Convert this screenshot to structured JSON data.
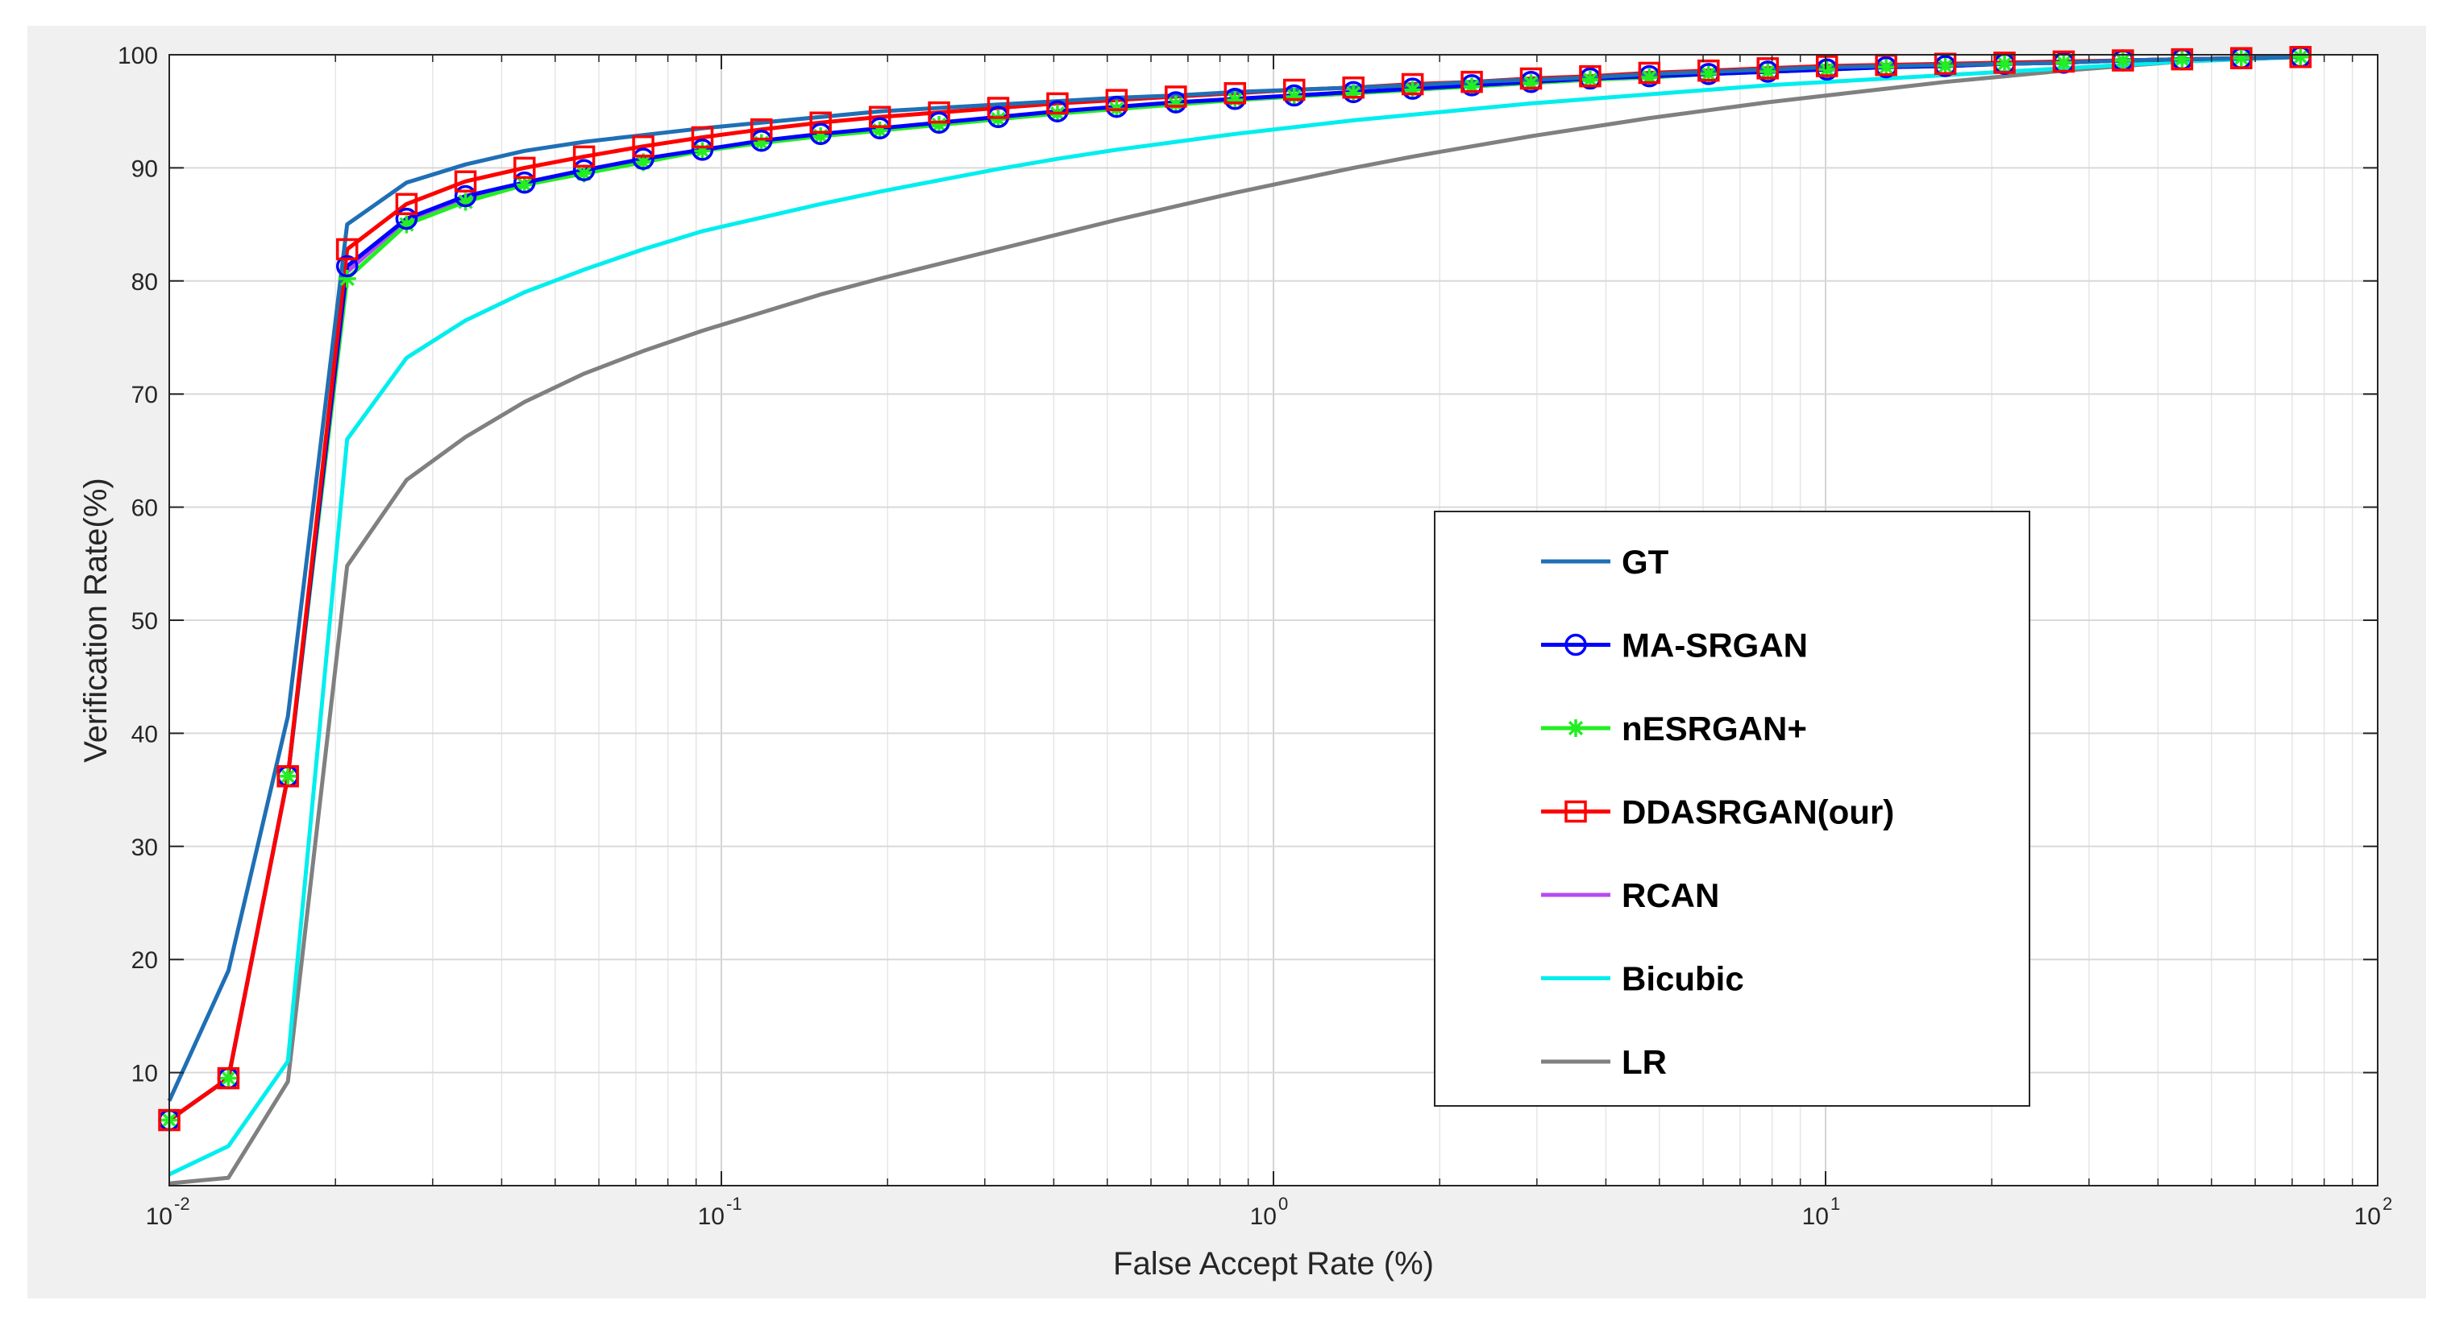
{
  "chart_data": {
    "type": "line",
    "title": "",
    "xlabel": "False Accept Rate (%)",
    "ylabel": "Verification Rate(%)",
    "xscale": "log",
    "xlim": [
      0.01,
      100
    ],
    "ylim": [
      0,
      100
    ],
    "grid": true,
    "legend_position": "bottom-right",
    "x_tick_labels": [
      {
        "base": "10",
        "exp": "-2",
        "value": 0.01
      },
      {
        "base": "10",
        "exp": "-1",
        "value": 0.1
      },
      {
        "base": "10",
        "exp": "0",
        "value": 1
      },
      {
        "base": "10",
        "exp": "1",
        "value": 10
      },
      {
        "base": "10",
        "exp": "2",
        "value": 100
      }
    ],
    "y_ticks": [
      10,
      20,
      30,
      40,
      50,
      60,
      70,
      80,
      90,
      100
    ],
    "x": [
      0.01,
      0.0128,
      0.0164,
      0.021,
      0.0269,
      0.0344,
      0.044,
      0.0564,
      0.0722,
      0.0924,
      0.1182,
      0.1513,
      0.1937,
      0.2479,
      0.3173,
      0.4062,
      0.5199,
      0.6655,
      0.8518,
      1.0904,
      1.3957,
      1.7865,
      2.2867,
      2.927,
      3.7465,
      4.7955,
      6.1383,
      7.8571,
      10.057,
      12.873,
      16.478,
      21.092,
      26.998,
      34.557,
      44.233,
      56.618,
      72.471
    ],
    "series": [
      {
        "name": "GT",
        "color": "#1f6fb5",
        "marker": "none",
        "values": [
          7.5,
          19,
          41.5,
          85,
          88.7,
          90.3,
          91.5,
          92.3,
          92.9,
          93.5,
          94.0,
          94.5,
          95.0,
          95.3,
          95.6,
          95.9,
          96.2,
          96.4,
          96.7,
          96.9,
          97.1,
          97.3,
          97.6,
          97.8,
          98.0,
          98.3,
          98.5,
          98.7,
          98.9,
          99.0,
          99.1,
          99.2,
          99.3,
          99.5,
          99.6,
          99.7,
          99.8
        ]
      },
      {
        "name": "MA-SRGAN",
        "color": "#0000ff",
        "marker": "circle",
        "values": [
          5.8,
          9.5,
          36.2,
          81.3,
          85.5,
          87.5,
          88.7,
          89.8,
          90.8,
          91.6,
          92.4,
          93.0,
          93.5,
          94.0,
          94.5,
          95.0,
          95.4,
          95.8,
          96.1,
          96.4,
          96.7,
          97.0,
          97.3,
          97.6,
          97.9,
          98.1,
          98.3,
          98.5,
          98.7,
          98.9,
          99.0,
          99.2,
          99.3,
          99.5,
          99.6,
          99.7,
          99.8
        ]
      },
      {
        "name": "nESRGAN+",
        "color": "#22ee22",
        "marker": "star",
        "values": [
          5.8,
          9.5,
          36.2,
          80.2,
          85.0,
          87.0,
          88.5,
          89.5,
          90.5,
          91.5,
          92.2,
          92.8,
          93.3,
          93.8,
          94.3,
          94.8,
          95.2,
          95.6,
          96.0,
          96.3,
          96.6,
          96.9,
          97.2,
          97.5,
          97.8,
          98.0,
          98.3,
          98.5,
          98.7,
          98.9,
          99.0,
          99.2,
          99.3,
          99.5,
          99.6,
          99.7,
          99.8
        ]
      },
      {
        "name": "DDASRGAN(our)",
        "color": "#ff0000",
        "marker": "square",
        "values": [
          5.8,
          9.5,
          36.2,
          82.8,
          86.8,
          88.8,
          90.0,
          91.0,
          91.9,
          92.7,
          93.4,
          94.0,
          94.5,
          94.9,
          95.3,
          95.7,
          96.0,
          96.3,
          96.6,
          96.9,
          97.1,
          97.4,
          97.6,
          97.9,
          98.1,
          98.4,
          98.6,
          98.8,
          99.0,
          99.1,
          99.2,
          99.3,
          99.4,
          99.5,
          99.6,
          99.7,
          99.8
        ]
      },
      {
        "name": "RCAN",
        "color": "#b44cf0",
        "marker": "none",
        "values": [
          5.8,
          9.5,
          36.2,
          80.8,
          85.4,
          87.3,
          88.7,
          89.8,
          90.7,
          91.5,
          92.3,
          92.9,
          93.4,
          93.9,
          94.4,
          94.9,
          95.3,
          95.7,
          96.0,
          96.3,
          96.6,
          96.9,
          97.2,
          97.5,
          97.8,
          98.0,
          98.3,
          98.5,
          98.7,
          98.9,
          99.0,
          99.2,
          99.3,
          99.5,
          99.6,
          99.7,
          99.8
        ]
      },
      {
        "name": "Bicubic",
        "color": "#00eeee",
        "marker": "none",
        "values": [
          1.0,
          3.5,
          11.0,
          66.0,
          73.2,
          76.5,
          79.0,
          81.0,
          82.8,
          84.4,
          85.6,
          86.8,
          87.9,
          88.9,
          89.9,
          90.8,
          91.6,
          92.3,
          93.0,
          93.6,
          94.2,
          94.7,
          95.2,
          95.7,
          96.1,
          96.5,
          96.9,
          97.3,
          97.6,
          97.9,
          98.2,
          98.5,
          98.8,
          99.1,
          99.4,
          99.6,
          99.8
        ]
      },
      {
        "name": "LR",
        "color": "#808080",
        "marker": "none",
        "values": [
          0.2,
          0.7,
          9.2,
          54.8,
          62.4,
          66.2,
          69.3,
          71.8,
          73.8,
          75.6,
          77.2,
          78.8,
          80.2,
          81.5,
          82.8,
          84.1,
          85.4,
          86.6,
          87.8,
          88.9,
          90.0,
          91.0,
          91.9,
          92.8,
          93.6,
          94.4,
          95.1,
          95.8,
          96.4,
          97.0,
          97.6,
          98.1,
          98.6,
          99.0,
          99.4,
          99.7,
          99.9
        ]
      }
    ]
  }
}
